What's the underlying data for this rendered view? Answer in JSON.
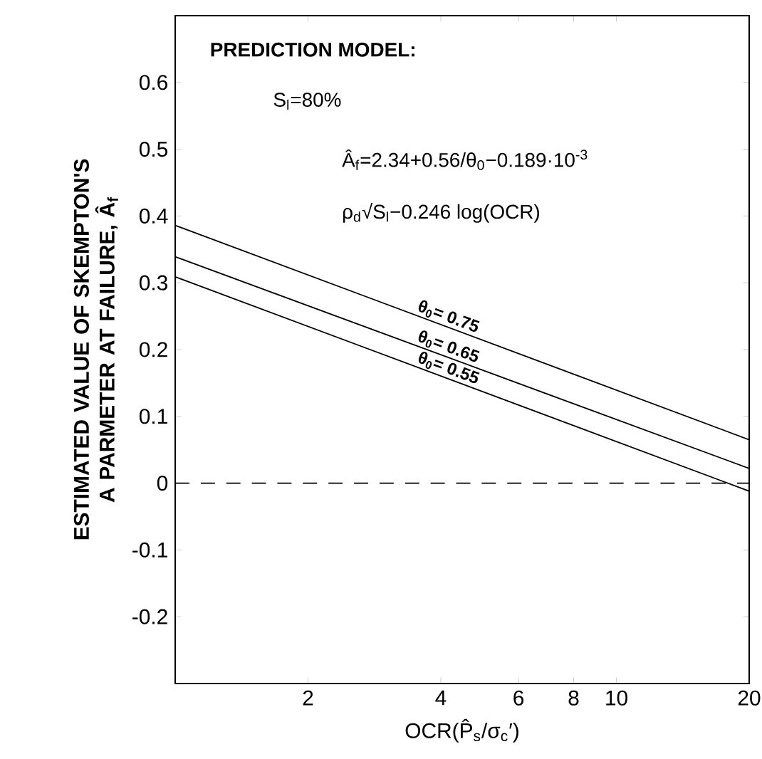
{
  "chart_data": {
    "type": "line",
    "xlabel": "OCR(P̂$_{s}$/σ$_{c}$′)",
    "ylabel": "ESTIMATED VALUE OF SKEMPTON'S A PARMETER AT FAILURE, Â$_{f}$",
    "annotations": [
      "PREDICTION MODEL:",
      "S$_{l}$=80%",
      "Â$_{f}$=2.34+0.56/θ$_{0}$−0.189·10$^{-3}$",
      "ρ$_{d}$√S$_{l}$−0.246 log(OCR)"
    ],
    "log": "x",
    "x": [
      1,
      20
    ],
    "xlim": [
      1,
      20
    ],
    "xticks": [
      2,
      4,
      6,
      8,
      10,
      20
    ],
    "ylim": [
      -0.3,
      0.7
    ],
    "yticks": [
      -0.2,
      -0.1,
      0,
      0.1,
      0.2,
      0.3,
      0.4,
      0.5,
      0.6
    ],
    "series": [
      {
        "name": "θ$_{0}$= 0.75",
        "color": "#000000",
        "values": [
          0.386,
          0.065
        ]
      },
      {
        "name": "θ$_{0}$= 0.65",
        "color": "#000000",
        "values": [
          0.339,
          0.022
        ]
      },
      {
        "name": "θ$_{0}$= 0.55",
        "color": "#000000",
        "values": [
          0.309,
          -0.012
        ]
      }
    ],
    "ref_lines": [
      {
        "axis": "y",
        "value": 0,
        "line_style": "dashed",
        "color": "#000000"
      }
    ],
    "grid": false,
    "line_style": "solid"
  }
}
